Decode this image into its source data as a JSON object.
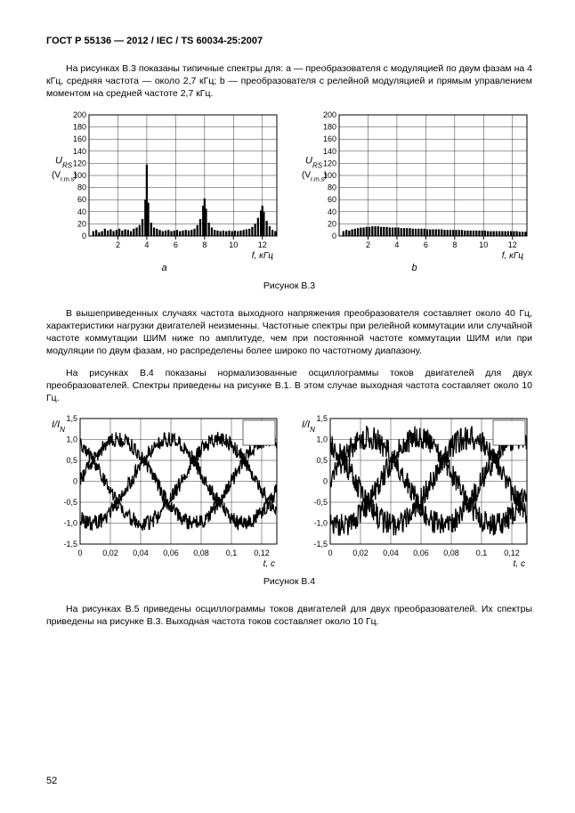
{
  "header": "ГОСТ Р 55136 — 2012 / IEC / TS 60034-25:2007",
  "para1": "На рисунках B.3 показаны типичные спектры для: a — преобразователя с модуляцией по двум фазам на 4 кГц, средняя частота — около 2,7 кГц; b — преобразователя с релейной модуляцией и прямым управлением моментом на средней частоте 2,7 кГц.",
  "figB3_caption": "Рисунок В.3",
  "para2": "В вышеприведенных случаях частота выходного напряжения преобразователя составляет около 40 Гц, характеристики нагрузки двигателей неизменны. Частотные спектры при релейной коммутации или случайной частоте коммутации ШИМ ниже по амплитуде, чем при постоянной частоте коммутации ШИМ или при модуляции по двум фазам, но распределены более широко по частотному диапазону.",
  "para3": "На рисунках В.4 показаны нормализованные осциллограммы токов двигателей для двух преобразователей. Спектры приведены на рисунке В.1. В этом случае выходная частота составляет около 10 Гц.",
  "figB4_caption": "Рисунок В.4",
  "para4": "На рисунках В.5 приведены осциллограммы токов двигателей для двух преобразователей. Их спектры приведены на рисунке В.3. Выходная частота токов составляет около 10 Гц.",
  "page_number": "52",
  "chartB3a": {
    "type": "bar",
    "sublabel": "a",
    "y_label_top": "U",
    "y_label_sub": "RS",
    "y_unit": "(V",
    "y_unit_sub": "r.m.s",
    "y_unit_close": ")",
    "x_label": "f, кГц",
    "xlim": [
      0,
      13
    ],
    "ylim": [
      0,
      200
    ],
    "ytick_step": 20,
    "xticks": [
      2,
      4,
      6,
      8,
      10,
      12
    ],
    "yticks": [
      0,
      20,
      40,
      60,
      80,
      100,
      120,
      140,
      160,
      180,
      200
    ],
    "grid_color": "#000",
    "bg": "#fff",
    "series": [
      {
        "x": 0.3,
        "y": 8
      },
      {
        "x": 0.5,
        "y": 10
      },
      {
        "x": 0.7,
        "y": 6
      },
      {
        "x": 0.9,
        "y": 8
      },
      {
        "x": 1.1,
        "y": 12
      },
      {
        "x": 1.3,
        "y": 9
      },
      {
        "x": 1.5,
        "y": 11
      },
      {
        "x": 1.7,
        "y": 8
      },
      {
        "x": 1.9,
        "y": 10
      },
      {
        "x": 2.1,
        "y": 12
      },
      {
        "x": 2.3,
        "y": 9
      },
      {
        "x": 2.5,
        "y": 11
      },
      {
        "x": 2.7,
        "y": 10
      },
      {
        "x": 2.9,
        "y": 8
      },
      {
        "x": 3.1,
        "y": 12
      },
      {
        "x": 3.3,
        "y": 14
      },
      {
        "x": 3.5,
        "y": 18
      },
      {
        "x": 3.7,
        "y": 28
      },
      {
        "x": 3.9,
        "y": 60
      },
      {
        "x": 4.0,
        "y": 118
      },
      {
        "x": 4.1,
        "y": 55
      },
      {
        "x": 4.3,
        "y": 22
      },
      {
        "x": 4.5,
        "y": 14
      },
      {
        "x": 4.7,
        "y": 12
      },
      {
        "x": 4.9,
        "y": 10
      },
      {
        "x": 5.1,
        "y": 8
      },
      {
        "x": 5.3,
        "y": 9
      },
      {
        "x": 5.5,
        "y": 10
      },
      {
        "x": 5.7,
        "y": 8
      },
      {
        "x": 5.9,
        "y": 9
      },
      {
        "x": 6.1,
        "y": 10
      },
      {
        "x": 6.3,
        "y": 8
      },
      {
        "x": 6.5,
        "y": 9
      },
      {
        "x": 6.7,
        "y": 10
      },
      {
        "x": 6.9,
        "y": 9
      },
      {
        "x": 7.1,
        "y": 10
      },
      {
        "x": 7.3,
        "y": 12
      },
      {
        "x": 7.5,
        "y": 18
      },
      {
        "x": 7.7,
        "y": 28
      },
      {
        "x": 7.9,
        "y": 50
      },
      {
        "x": 8.0,
        "y": 62
      },
      {
        "x": 8.1,
        "y": 45
      },
      {
        "x": 8.3,
        "y": 22
      },
      {
        "x": 8.5,
        "y": 14
      },
      {
        "x": 8.7,
        "y": 10
      },
      {
        "x": 8.9,
        "y": 9
      },
      {
        "x": 9.1,
        "y": 8
      },
      {
        "x": 9.3,
        "y": 9
      },
      {
        "x": 9.5,
        "y": 8
      },
      {
        "x": 9.7,
        "y": 9
      },
      {
        "x": 9.9,
        "y": 8
      },
      {
        "x": 10.1,
        "y": 9
      },
      {
        "x": 10.3,
        "y": 8
      },
      {
        "x": 10.5,
        "y": 9
      },
      {
        "x": 10.7,
        "y": 10
      },
      {
        "x": 10.9,
        "y": 11
      },
      {
        "x": 11.1,
        "y": 12
      },
      {
        "x": 11.3,
        "y": 15
      },
      {
        "x": 11.5,
        "y": 20
      },
      {
        "x": 11.7,
        "y": 30
      },
      {
        "x": 11.9,
        "y": 42
      },
      {
        "x": 12.0,
        "y": 50
      },
      {
        "x": 12.1,
        "y": 40
      },
      {
        "x": 12.3,
        "y": 25
      },
      {
        "x": 12.5,
        "y": 16
      },
      {
        "x": 12.7,
        "y": 10
      },
      {
        "x": 12.9,
        "y": 8
      }
    ],
    "bar_color": "#000",
    "bar_width_x": 0.14
  },
  "chartB3b": {
    "type": "bar",
    "sublabel": "b",
    "y_label_top": "U",
    "y_label_sub": "RS",
    "y_unit": "(V",
    "y_unit_sub": "r.m.s",
    "y_unit_close": ")",
    "x_label": "f, кГц",
    "xlim": [
      0,
      13
    ],
    "ylim": [
      0,
      200
    ],
    "ytick_step": 20,
    "xticks": [
      2,
      4,
      6,
      8,
      10,
      12
    ],
    "yticks": [
      0,
      20,
      40,
      60,
      80,
      100,
      120,
      140,
      160,
      180,
      200
    ],
    "grid_color": "#000",
    "bg": "#fff",
    "series": [
      {
        "x": 0.3,
        "y": 8
      },
      {
        "x": 0.5,
        "y": 10
      },
      {
        "x": 0.7,
        "y": 9
      },
      {
        "x": 0.9,
        "y": 11
      },
      {
        "x": 1.1,
        "y": 12
      },
      {
        "x": 1.3,
        "y": 13
      },
      {
        "x": 1.5,
        "y": 14
      },
      {
        "x": 1.7,
        "y": 14
      },
      {
        "x": 1.9,
        "y": 15
      },
      {
        "x": 2.1,
        "y": 15
      },
      {
        "x": 2.3,
        "y": 16
      },
      {
        "x": 2.5,
        "y": 16
      },
      {
        "x": 2.7,
        "y": 16
      },
      {
        "x": 2.9,
        "y": 15
      },
      {
        "x": 3.1,
        "y": 15
      },
      {
        "x": 3.3,
        "y": 15
      },
      {
        "x": 3.5,
        "y": 14
      },
      {
        "x": 3.7,
        "y": 14
      },
      {
        "x": 3.9,
        "y": 14
      },
      {
        "x": 4.1,
        "y": 14
      },
      {
        "x": 4.3,
        "y": 13
      },
      {
        "x": 4.5,
        "y": 13
      },
      {
        "x": 4.7,
        "y": 13
      },
      {
        "x": 4.9,
        "y": 13
      },
      {
        "x": 5.1,
        "y": 12
      },
      {
        "x": 5.3,
        "y": 12
      },
      {
        "x": 5.5,
        "y": 12
      },
      {
        "x": 5.7,
        "y": 12
      },
      {
        "x": 5.9,
        "y": 12
      },
      {
        "x": 6.1,
        "y": 11
      },
      {
        "x": 6.3,
        "y": 11
      },
      {
        "x": 6.5,
        "y": 11
      },
      {
        "x": 6.7,
        "y": 11
      },
      {
        "x": 6.9,
        "y": 11
      },
      {
        "x": 7.1,
        "y": 11
      },
      {
        "x": 7.3,
        "y": 10
      },
      {
        "x": 7.5,
        "y": 10
      },
      {
        "x": 7.7,
        "y": 10
      },
      {
        "x": 7.9,
        "y": 10
      },
      {
        "x": 8.1,
        "y": 10
      },
      {
        "x": 8.3,
        "y": 10
      },
      {
        "x": 8.5,
        "y": 10
      },
      {
        "x": 8.7,
        "y": 9
      },
      {
        "x": 8.9,
        "y": 9
      },
      {
        "x": 9.1,
        "y": 9
      },
      {
        "x": 9.3,
        "y": 9
      },
      {
        "x": 9.5,
        "y": 9
      },
      {
        "x": 9.7,
        "y": 9
      },
      {
        "x": 9.9,
        "y": 9
      },
      {
        "x": 10.1,
        "y": 9
      },
      {
        "x": 10.3,
        "y": 8
      },
      {
        "x": 10.5,
        "y": 8
      },
      {
        "x": 10.7,
        "y": 8
      },
      {
        "x": 10.9,
        "y": 8
      },
      {
        "x": 11.1,
        "y": 8
      },
      {
        "x": 11.3,
        "y": 8
      },
      {
        "x": 11.5,
        "y": 8
      },
      {
        "x": 11.7,
        "y": 8
      },
      {
        "x": 11.9,
        "y": 8
      },
      {
        "x": 12.1,
        "y": 8
      },
      {
        "x": 12.3,
        "y": 8
      },
      {
        "x": 12.5,
        "y": 7
      },
      {
        "x": 12.7,
        "y": 7
      },
      {
        "x": 12.9,
        "y": 7
      }
    ],
    "bar_color": "#000",
    "bar_width_x": 0.14
  },
  "chartB4a": {
    "type": "line",
    "y_label": "I/I",
    "y_label_sub": "N",
    "x_label": "t, c",
    "xlim": [
      0,
      0.13
    ],
    "ylim": [
      -1.5,
      1.5
    ],
    "xticks": [
      "0",
      "0,02",
      "0,04",
      "0,06",
      "0,08",
      "0,1",
      "0,12"
    ],
    "xtick_vals": [
      0,
      0.02,
      0.04,
      0.06,
      0.08,
      0.1,
      0.12
    ],
    "yticks": [
      "-1,5",
      "-1,0",
      "-0,5",
      "0",
      "0,5",
      "1,0",
      "1,5"
    ],
    "ytick_vals": [
      -1.5,
      -1.0,
      -0.5,
      0,
      0.5,
      1.0,
      1.5
    ],
    "grid_color": "#000",
    "bg": "#fff",
    "amplitude": 1.0,
    "period": 0.1,
    "noise": 0.18,
    "phases": [
      0,
      0.333,
      0.667
    ],
    "line_color": "#000",
    "line_width": 1.3
  },
  "chartB4b": {
    "type": "line",
    "y_label": "I/I",
    "y_label_sub": "N",
    "x_label": "t, c",
    "xlim": [
      0,
      0.13
    ],
    "ylim": [
      -1.5,
      1.5
    ],
    "xticks": [
      "0",
      "0,02",
      "0,04",
      "0,06",
      "0,08",
      "0,1",
      "0,12"
    ],
    "xtick_vals": [
      0,
      0.02,
      0.04,
      0.06,
      0.08,
      0.1,
      0.12
    ],
    "yticks": [
      "-1,5",
      "-1,0",
      "-0,5",
      "0",
      "0,5",
      "1,0",
      "1,5"
    ],
    "ytick_vals": [
      -1.5,
      -1.0,
      -0.5,
      0,
      0.5,
      1.0,
      1.5
    ],
    "grid_color": "#000",
    "bg": "#fff",
    "amplitude": 1.05,
    "period": 0.1,
    "noise": 0.28,
    "phases": [
      0,
      0.333,
      0.667
    ],
    "line_color": "#000",
    "line_width": 1.3
  }
}
